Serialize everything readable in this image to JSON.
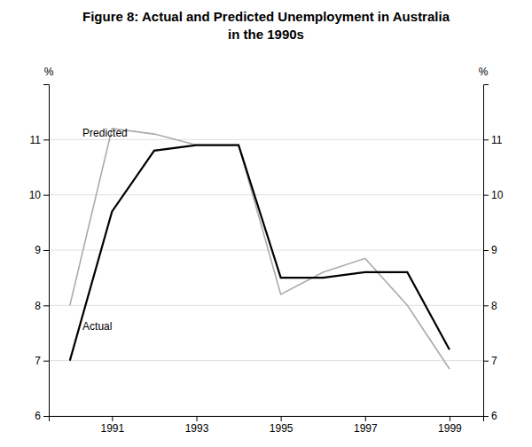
{
  "chart_data": {
    "type": "line",
    "title": "Figure 8: Actual and Predicted Unemployment in Australia",
    "subtitle": "in the 1990s",
    "y_label": "%",
    "y2_label": "%",
    "x": [
      1990,
      1991,
      1992,
      1993,
      1994,
      1995,
      1996,
      1997,
      1998,
      1999
    ],
    "series": [
      {
        "name": "Predicted",
        "color": "#aaaaaa",
        "values": [
          8.0,
          11.2,
          11.1,
          10.9,
          10.9,
          8.2,
          8.6,
          8.85,
          8.0,
          6.85
        ]
      },
      {
        "name": "Actual",
        "color": "#000000",
        "values": [
          7.0,
          9.7,
          10.8,
          10.9,
          10.9,
          8.5,
          8.5,
          8.6,
          8.6,
          7.2
        ]
      }
    ],
    "annotations": [
      {
        "text": "Predicted",
        "x": 1990.3,
        "y": 11.05
      },
      {
        "text": "Actual",
        "x": 1990.3,
        "y": 7.55
      }
    ],
    "xlim": [
      1989.5,
      1999.8
    ],
    "xticks": [
      1991,
      1993,
      1995,
      1997,
      1999
    ],
    "ylim": [
      6,
      12
    ],
    "yticks": [
      6,
      7,
      8,
      9,
      10,
      11
    ],
    "y2lim": [
      6,
      12
    ],
    "y2ticks": [
      6,
      7,
      8,
      9,
      10,
      11
    ],
    "grid": true
  }
}
